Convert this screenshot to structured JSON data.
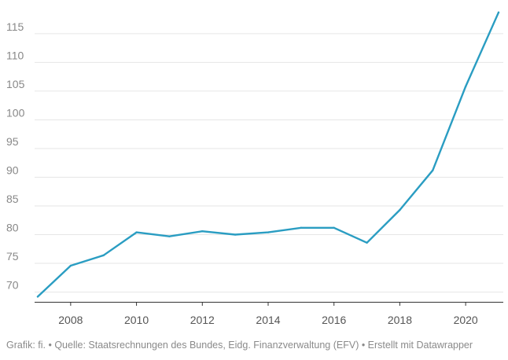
{
  "chart_data": {
    "type": "line",
    "x": [
      2007,
      2008,
      2009,
      2010,
      2011,
      2012,
      2013,
      2014,
      2015,
      2016,
      2017,
      2018,
      2019,
      2020,
      2021
    ],
    "series": [
      {
        "values": [
          69.2,
          74.6,
          76.4,
          80.4,
          79.7,
          80.6,
          80.0,
          80.4,
          81.2,
          81.2,
          78.6,
          84.3,
          91.2,
          105.8,
          118.7
        ]
      }
    ],
    "yticks": [
      70,
      75,
      80,
      85,
      90,
      95,
      100,
      105,
      110,
      115
    ],
    "xticks": [
      2008,
      2010,
      2012,
      2014,
      2016,
      2018,
      2020
    ],
    "xlim": [
      2007,
      2021
    ],
    "ylim": [
      68.3,
      119.5
    ],
    "grid": true,
    "line_color": "#2a9dc2"
  },
  "footer": {
    "text": "Grafik: fi. • Quelle: Staatsrechnungen des Bundes, Eidg. Finanzverwaltung (EFV) • Erstellt mit Datawrapper"
  }
}
